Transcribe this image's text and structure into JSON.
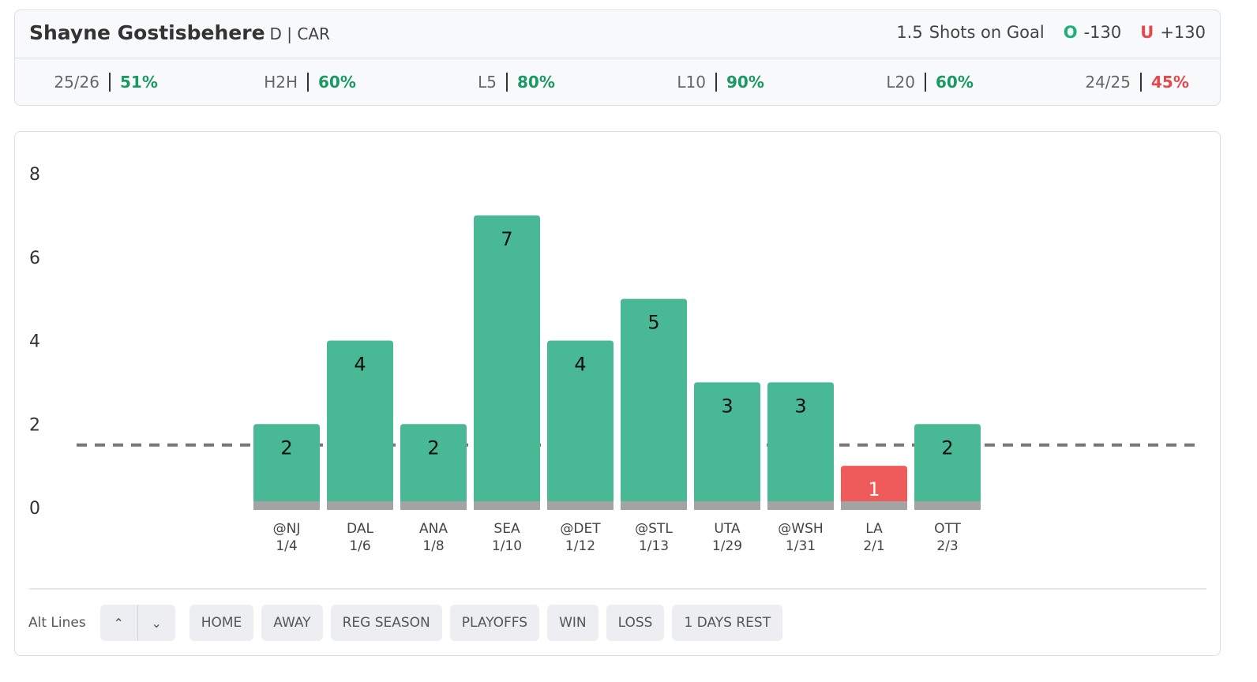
{
  "header": {
    "player": "Shayne Gostisbehere",
    "position": "D | CAR",
    "market": "Shots on Goal",
    "over_symbol": "O",
    "over_odds": "-130",
    "under_symbol": "U",
    "under_odds": "+130"
  },
  "stats": [
    {
      "label": "25/26",
      "value": "51%",
      "color": "#1a9a63"
    },
    {
      "label": "H2H",
      "value": "60%",
      "color": "#1a9a63"
    },
    {
      "label": "L5",
      "value": "80%",
      "color": "#1a9a63"
    },
    {
      "label": "L10",
      "value": "90%",
      "color": "#1a9a63"
    },
    {
      "label": "L20",
      "value": "60%",
      "color": "#1a9a63"
    },
    {
      "label": "24/25",
      "value": "45%",
      "color": "#e5484d"
    }
  ],
  "chart_data": {
    "type": "bar",
    "categories": [
      "@NJ",
      "DAL",
      "ANA",
      "SEA",
      "@DET",
      "@STL",
      "UTA",
      "@WSH",
      "LA",
      "OTT"
    ],
    "dates": [
      "1/4",
      "1/6",
      "1/8",
      "1/10",
      "1/12",
      "1/13",
      "1/29",
      "1/31",
      "2/1",
      "2/3"
    ],
    "values": [
      2,
      4,
      2,
      7,
      4,
      5,
      3,
      3,
      1,
      2
    ],
    "colors": [
      "#48b994",
      "#48b994",
      "#48b994",
      "#48b994",
      "#48b994",
      "#48b994",
      "#48b994",
      "#48b994",
      "#ef5a5a",
      "#48b994"
    ],
    "threshold": 1.5,
    "ylim": [
      0,
      8
    ],
    "yticks": [
      0,
      2,
      4,
      6,
      8
    ]
  },
  "footer": {
    "alt_label": "Alt Lines",
    "filters": [
      "HOME",
      "AWAY",
      "REG SEASON",
      "PLAYOFFS",
      "WIN",
      "LOSS",
      "1 DAYS REST"
    ]
  }
}
